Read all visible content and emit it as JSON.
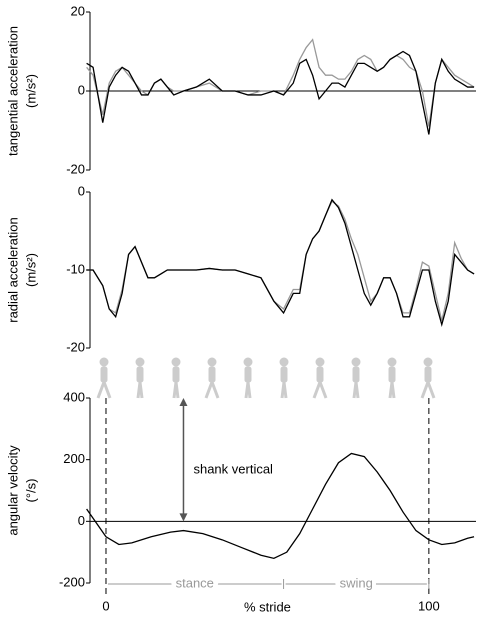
{
  "chart_data": [
    {
      "type": "line",
      "ylabel": [
        "tangential acceleration",
        "(m/s²)"
      ],
      "xlim": [
        -6.5,
        114.6
      ],
      "ylim": [
        -20,
        20
      ],
      "yticks": [
        20,
        0,
        -20
      ],
      "zero_line": true,
      "x": [
        -6,
        -4,
        -1,
        1,
        3,
        5,
        7,
        9,
        11,
        13,
        15,
        17,
        19,
        21,
        24,
        28,
        32,
        36,
        40,
        44,
        48,
        52,
        55,
        58,
        60,
        62,
        64,
        66,
        68,
        70,
        72,
        74,
        76,
        78,
        80,
        82,
        84,
        86,
        88,
        90,
        92,
        94,
        96,
        98,
        100,
        102,
        104,
        106,
        108,
        110,
        112,
        114
      ],
      "series": [
        {
          "color": "#999999",
          "values": [
            6,
            4,
            -6,
            2,
            5,
            6,
            4,
            2,
            0,
            -1,
            2,
            3,
            1,
            0,
            0,
            1,
            2,
            0,
            0,
            -1,
            0,
            0,
            -1,
            4,
            8,
            11,
            13,
            6,
            4,
            4,
            3,
            3,
            5,
            8,
            9,
            8,
            5,
            6,
            8,
            9,
            8,
            6,
            5,
            0,
            -9,
            2,
            8,
            6,
            4,
            3,
            2,
            1
          ]
        },
        {
          "color": "#000000",
          "values": [
            7,
            6,
            -8,
            1,
            4,
            6,
            5,
            2,
            -1,
            -1,
            2,
            3,
            1,
            -1,
            0,
            1,
            3,
            0,
            0,
            -1,
            -1,
            0,
            -1,
            2,
            7,
            8,
            4,
            -2,
            0,
            2,
            2,
            1,
            4,
            7,
            7,
            6,
            5,
            6,
            8,
            9,
            10,
            9,
            5,
            -3,
            -11,
            2,
            8,
            5,
            3,
            2,
            1,
            1
          ]
        }
      ]
    },
    {
      "type": "line",
      "ylabel": [
        "radial acceleration",
        "(m/s²)"
      ],
      "xlim": [
        -6.5,
        114.6
      ],
      "ylim": [
        -20,
        0
      ],
      "yticks": [
        0,
        -10,
        -20
      ],
      "zero_line": false,
      "x": [
        -6,
        -4,
        -1,
        1,
        3,
        5,
        7,
        9,
        11,
        13,
        15,
        17,
        19,
        21,
        24,
        28,
        32,
        36,
        40,
        44,
        48,
        52,
        55,
        58,
        60,
        62,
        64,
        66,
        68,
        70,
        72,
        74,
        76,
        78,
        80,
        82,
        84,
        86,
        88,
        90,
        92,
        94,
        96,
        98,
        100,
        102,
        104,
        106,
        108,
        110,
        112,
        114
      ],
      "series": [
        {
          "color": "#999999",
          "values": [
            -10,
            -10,
            -12,
            -15,
            -15.5,
            -12.5,
            -8,
            -7,
            -9,
            -11,
            -11,
            -10.5,
            -10,
            -10,
            -10,
            -10,
            -9.8,
            -10,
            -10,
            -10.5,
            -11,
            -14,
            -15,
            -12.5,
            -12.5,
            -8,
            -6,
            -5,
            -3,
            -1.2,
            -1.8,
            -3.5,
            -6,
            -8,
            -11,
            -14,
            -13,
            -11,
            -11,
            -13,
            -15.5,
            -15.5,
            -12.5,
            -9,
            -9.5,
            -13,
            -16.5,
            -13,
            -6.5,
            -8.5,
            -10,
            -10.5
          ]
        },
        {
          "color": "#000000",
          "values": [
            -10,
            -10,
            -12,
            -15,
            -16,
            -13,
            -8,
            -7,
            -9,
            -11,
            -11,
            -10.5,
            -10,
            -10,
            -10,
            -10,
            -9.8,
            -10,
            -10,
            -10.5,
            -11,
            -14,
            -15.5,
            -13,
            -13,
            -8,
            -6,
            -5,
            -3,
            -1,
            -2,
            -4,
            -7,
            -10,
            -13,
            -14.5,
            -13,
            -11,
            -11,
            -13,
            -16,
            -16,
            -13,
            -10,
            -10,
            -14,
            -17,
            -14,
            -8,
            -9,
            -10,
            -10.5
          ]
        }
      ]
    },
    {
      "type": "line",
      "ylabel": [
        "angular velocity",
        "(°/s)"
      ],
      "xlabel": "% stride",
      "xlim": [
        -6.5,
        114.6
      ],
      "xticks": [
        0,
        100
      ],
      "ylim": [
        -200,
        400
      ],
      "yticks": [
        400,
        200,
        0,
        -200
      ],
      "zero_line": true,
      "x": [
        -6,
        -4,
        -2,
        0,
        4,
        8,
        14,
        20,
        24,
        30,
        36,
        42,
        48,
        52,
        56,
        60,
        64,
        68,
        72,
        76,
        80,
        84,
        88,
        92,
        96,
        100,
        104,
        108,
        112,
        114
      ],
      "series": [
        {
          "color": "#000000",
          "values": [
            40,
            10,
            -20,
            -50,
            -75,
            -70,
            -50,
            -35,
            -30,
            -40,
            -60,
            -85,
            -110,
            -120,
            -100,
            -40,
            40,
            120,
            190,
            220,
            210,
            160,
            100,
            30,
            -30,
            -60,
            -75,
            -70,
            -55,
            -50
          ]
        }
      ],
      "annotations": [
        {
          "text": "shank vertical",
          "x": 24
        }
      ],
      "phases": [
        {
          "label": "stance",
          "range": [
            0,
            55
          ]
        },
        {
          "label": "swing",
          "range": [
            55,
            100
          ]
        }
      ]
    }
  ]
}
